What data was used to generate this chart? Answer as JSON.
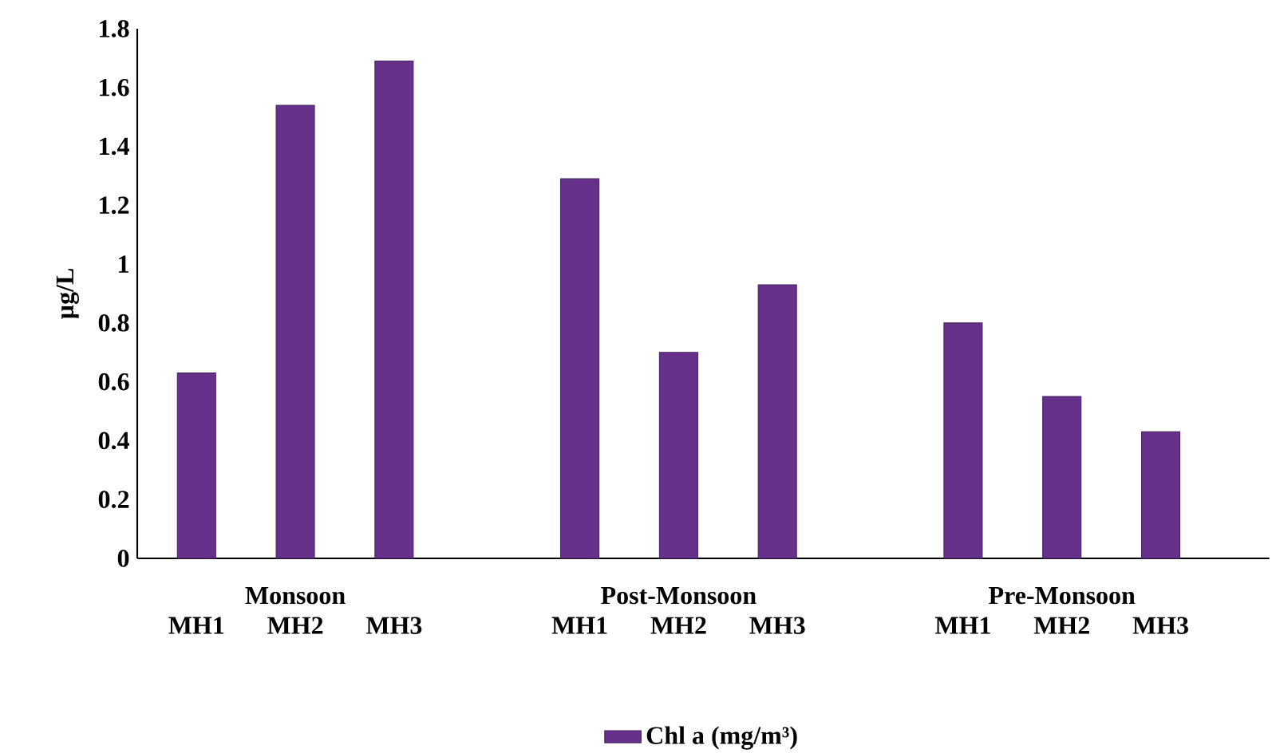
{
  "chart_data": {
    "type": "bar",
    "ylabel": "µg/L",
    "categories": [
      "MH1",
      "MH2",
      "MH3",
      "MH1",
      "MH2",
      "MH3",
      "MH1",
      "MH2",
      "MH3"
    ],
    "annotations": [
      "Monsoon",
      "Post-Monsoon",
      "Pre-Monsoon"
    ],
    "series": [
      {
        "name": "Chl a (mg/m³)",
        "color": "#65318a",
        "values": [
          0.63,
          1.54,
          1.69,
          1.29,
          0.7,
          0.93,
          0.8,
          0.55,
          0.43
        ]
      }
    ],
    "ylim": [
      0,
      1.8
    ],
    "yticks": [
      0,
      0.2,
      0.4,
      0.6,
      0.8,
      1,
      1.2,
      1.4,
      1.6,
      1.8
    ],
    "grid": false,
    "legend": "bottom"
  }
}
